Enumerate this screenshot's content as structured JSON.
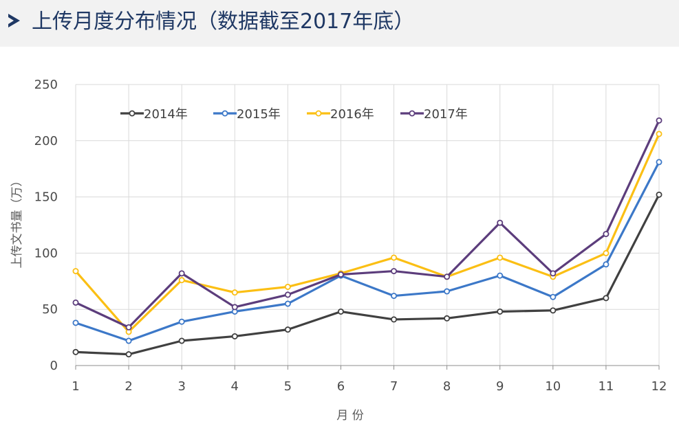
{
  "header": {
    "title": "上传月度分布情况（数据截至2017年底）"
  },
  "chart_data": {
    "type": "line",
    "title": "",
    "xlabel": "月 份",
    "ylabel": "上传文书量（万）",
    "categories": [
      "1",
      "2",
      "3",
      "4",
      "5",
      "6",
      "7",
      "8",
      "9",
      "10",
      "11",
      "12"
    ],
    "ylim": [
      0,
      250
    ],
    "yticks": [
      0,
      50,
      100,
      150,
      200,
      250
    ],
    "grid": true,
    "legend_position": "top",
    "series": [
      {
        "name": "2014年",
        "color": "#404040",
        "values": [
          12,
          10,
          22,
          26,
          32,
          48,
          41,
          42,
          48,
          49,
          60,
          152
        ]
      },
      {
        "name": "2015年",
        "color": "#3c78c8",
        "values": [
          38,
          22,
          39,
          48,
          55,
          80,
          62,
          66,
          80,
          61,
          90,
          181
        ]
      },
      {
        "name": "2016年",
        "color": "#fbbf14",
        "values": [
          84,
          30,
          76,
          65,
          70,
          82,
          96,
          79,
          96,
          79,
          100,
          206
        ]
      },
      {
        "name": "2017年",
        "color": "#5c3d7c",
        "values": [
          56,
          34,
          82,
          52,
          63,
          81,
          84,
          79,
          127,
          82,
          117,
          218
        ]
      }
    ]
  }
}
